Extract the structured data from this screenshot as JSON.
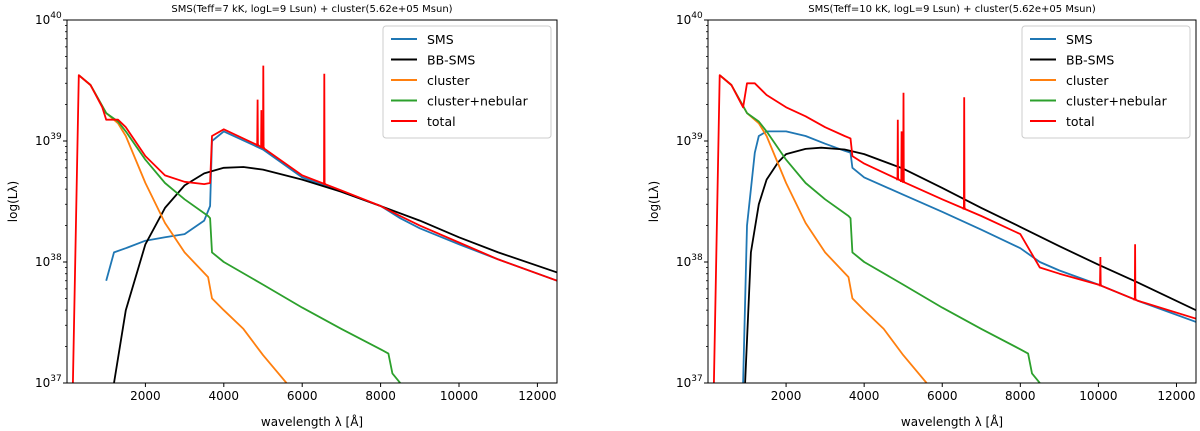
{
  "chart_data": [
    {
      "type": "line",
      "title": "SMS(Teff=7 kK, logL=9 Lsun) + cluster(5.62e+05 Msun)",
      "xlabel": "wavelength λ [Å]",
      "ylabel": "log(Lλ)",
      "xlim": [
        0,
        12500
      ],
      "ylim": [
        1e+37,
        1e+40
      ],
      "yscale": "log",
      "xticks": [
        2000,
        4000,
        6000,
        8000,
        10000,
        12000
      ],
      "xtick_labels": [
        "2000",
        "4000",
        "6000",
        "8000",
        "10000",
        "12000"
      ],
      "ytick_labels": [
        "10^37",
        "10^38",
        "10^39",
        "10^40"
      ],
      "legend_position": "top-right",
      "series": [
        {
          "name": "SMS",
          "color": "#1f77b4",
          "x": [
            1000,
            1200,
            1500,
            2000,
            2500,
            3000,
            3500,
            3650,
            3700,
            4000,
            5000,
            6000,
            7000,
            8000,
            8500,
            9000,
            10000,
            11000,
            12500
          ],
          "y": [
            7e+37,
            1.2e+38,
            1.3e+38,
            1.5e+38,
            1.6e+38,
            1.7e+38,
            2.2e+38,
            2.9e+38,
            1e+39,
            1.2e+39,
            8.5e+38,
            5e+38,
            3.8e+38,
            2.9e+38,
            2.3e+38,
            1.9e+38,
            1.4e+38,
            1.05e+38,
            7e+37
          ]
        },
        {
          "name": "BB-SMS",
          "color": "#000000",
          "x": [
            1200,
            1500,
            2000,
            2500,
            3000,
            3500,
            4000,
            4500,
            5000,
            6000,
            7000,
            8000,
            9000,
            10000,
            11000,
            12500
          ],
          "y": [
            1e+37,
            4e+37,
            1.4e+38,
            2.8e+38,
            4.3e+38,
            5.4e+38,
            6e+38,
            6.1e+38,
            5.8e+38,
            4.8e+38,
            3.8e+38,
            2.9e+38,
            2.2e+38,
            1.6e+38,
            1.2e+38,
            8.2e+37
          ]
        },
        {
          "name": "cluster",
          "color": "#ff7f0e",
          "x": [
            300,
            600,
            1000,
            1300,
            1500,
            2000,
            2500,
            3000,
            3600,
            3700,
            4000,
            4500,
            5000,
            5600
          ],
          "y": [
            3.5e+39,
            2.9e+39,
            1.7e+39,
            1.4e+39,
            1.1e+39,
            4.5e+38,
            2.1e+38,
            1.2e+38,
            7.5e+37,
            5e+37,
            4e+37,
            2.8e+37,
            1.7e+37,
            1e+37
          ]
        },
        {
          "name": "cluster+nebular",
          "color": "#2ca02c",
          "x": [
            300,
            600,
            1000,
            1300,
            1500,
            2000,
            2500,
            3000,
            3600,
            3650,
            3700,
            4000,
            5000,
            6000,
            7000,
            8000,
            8200,
            8300,
            8500
          ],
          "y": [
            3.5e+39,
            2.9e+39,
            1.7e+39,
            1.45e+39,
            1.2e+39,
            7e+38,
            4.5e+38,
            3.3e+38,
            2.4e+38,
            2.3e+38,
            1.2e+38,
            1e+38,
            6.5e+37,
            4.2e+37,
            2.8e+37,
            1.9e+37,
            1.75e+37,
            1.2e+37,
            1e+37
          ]
        },
        {
          "name": "total",
          "color": "#ff0000",
          "x": [
            150,
            300,
            600,
            900,
            1000,
            1300,
            1500,
            2000,
            2500,
            3000,
            3500,
            3650,
            3700,
            4000,
            5000,
            6000,
            7000,
            8000,
            8500,
            9000,
            10000,
            11000,
            12500
          ],
          "y": [
            1e+37,
            3.5e+39,
            2.9e+39,
            1.9e+39,
            1.5e+39,
            1.5e+39,
            1.3e+39,
            7.5e+38,
            5.2e+38,
            4.6e+38,
            4.4e+38,
            4.5e+38,
            1.1e+39,
            1.25e+39,
            8.8e+38,
            5.2e+38,
            3.9e+38,
            2.9e+38,
            2.4e+38,
            2e+38,
            1.45e+38,
            1.05e+38,
            7e+37
          ]
        }
      ],
      "emission_lines": [
        {
          "series": "total",
          "x": 4861,
          "peak": 2.2e+39
        },
        {
          "series": "total",
          "x": 4959,
          "peak": 1.8e+39
        },
        {
          "series": "total",
          "x": 5007,
          "peak": 4.2e+39
        },
        {
          "series": "total",
          "x": 6563,
          "peak": 3.6e+39
        }
      ]
    },
    {
      "type": "line",
      "title": "SMS(Teff=10 kK, logL=9 Lsun) + cluster(5.62e+05 Msun)",
      "xlabel": "wavelength λ [Å]",
      "ylabel": "log(Lλ)",
      "xlim": [
        0,
        12500
      ],
      "ylim": [
        1e+37,
        1e+40
      ],
      "yscale": "log",
      "xticks": [
        2000,
        4000,
        6000,
        8000,
        10000,
        12000
      ],
      "xtick_labels": [
        "2000",
        "4000",
        "6000",
        "8000",
        "10000",
        "12000"
      ],
      "ytick_labels": [
        "10^37",
        "10^38",
        "10^39",
        "10^40"
      ],
      "legend_position": "top-right",
      "series": [
        {
          "name": "SMS",
          "color": "#1f77b4",
          "x": [
            900,
            1000,
            1100,
            1200,
            1300,
            1500,
            2000,
            2500,
            3000,
            3500,
            3650,
            3700,
            4000,
            5000,
            6000,
            7000,
            8000,
            8500,
            9000,
            10000,
            11000,
            12500
          ],
          "y": [
            1e+37,
            2e+38,
            4e+38,
            8e+38,
            1.1e+39,
            1.2e+39,
            1.2e+39,
            1.1e+39,
            9.5e+38,
            8.3e+38,
            8e+38,
            6e+38,
            5e+38,
            3.6e+38,
            2.6e+38,
            1.85e+38,
            1.3e+38,
            1e+38,
            8.5e+37,
            6.5e+37,
            4.8e+37,
            3.2e+37
          ]
        },
        {
          "name": "BB-SMS",
          "color": "#000000",
          "x": [
            950,
            1100,
            1300,
            1500,
            1800,
            2000,
            2500,
            2900,
            3500,
            4000,
            5000,
            6000,
            7000,
            8000,
            9000,
            10000,
            11000,
            12500
          ],
          "y": [
            1e+37,
            1.2e+38,
            3e+38,
            4.8e+38,
            6.7e+38,
            7.8e+38,
            8.6e+38,
            8.8e+38,
            8.5e+38,
            7.8e+38,
            5.9e+38,
            4.1e+38,
            2.8e+38,
            1.95e+38,
            1.35e+38,
            9.5e+37,
            6.8e+37,
            4e+37
          ]
        },
        {
          "name": "cluster",
          "color": "#ff7f0e",
          "x": [
            300,
            600,
            1000,
            1300,
            1500,
            2000,
            2500,
            3000,
            3600,
            3700,
            4000,
            4500,
            5000,
            5600
          ],
          "y": [
            3.5e+39,
            2.9e+39,
            1.7e+39,
            1.4e+39,
            1.1e+39,
            4.5e+38,
            2.1e+38,
            1.2e+38,
            7.5e+37,
            5e+37,
            4e+37,
            2.8e+37,
            1.7e+37,
            1e+37
          ]
        },
        {
          "name": "cluster+nebular",
          "color": "#2ca02c",
          "x": [
            300,
            600,
            1000,
            1300,
            1500,
            2000,
            2500,
            3000,
            3600,
            3650,
            3700,
            4000,
            5000,
            6000,
            7000,
            8000,
            8200,
            8300,
            8500
          ],
          "y": [
            3.5e+39,
            2.9e+39,
            1.7e+39,
            1.45e+39,
            1.2e+39,
            7e+38,
            4.5e+38,
            3.3e+38,
            2.4e+38,
            2.3e+38,
            1.2e+38,
            1e+38,
            6.5e+37,
            4.2e+37,
            2.8e+37,
            1.9e+37,
            1.75e+37,
            1.2e+37,
            1e+37
          ]
        },
        {
          "name": "total",
          "color": "#ff0000",
          "x": [
            150,
            300,
            600,
            900,
            1000,
            1200,
            1500,
            2000,
            2500,
            3000,
            3500,
            3650,
            3700,
            4000,
            5000,
            6000,
            7000,
            8000,
            8500,
            9000,
            10000,
            11000,
            12500
          ],
          "y": [
            1e+37,
            3.5e+39,
            2.9e+39,
            1.9e+39,
            3e+39,
            3e+39,
            2.4e+39,
            1.9e+39,
            1.6e+39,
            1.3e+39,
            1.1e+39,
            1.05e+39,
            7.5e+38,
            6.5e+38,
            4.6e+38,
            3.3e+38,
            2.4e+38,
            1.7e+38,
            9e+37,
            8e+37,
            6.5e+37,
            4.8e+37,
            3.4e+37
          ]
        }
      ],
      "emission_lines": [
        {
          "series": "total",
          "x": 4861,
          "peak": 1.5e+39
        },
        {
          "series": "total",
          "x": 4959,
          "peak": 1.2e+39
        },
        {
          "series": "total",
          "x": 5007,
          "peak": 2.5e+39
        },
        {
          "series": "total",
          "x": 6563,
          "peak": 2.3e+39
        },
        {
          "series": "total",
          "x": 10050,
          "peak": 1.1e+38
        },
        {
          "series": "total",
          "x": 10940,
          "peak": 1.4e+38
        }
      ]
    }
  ]
}
